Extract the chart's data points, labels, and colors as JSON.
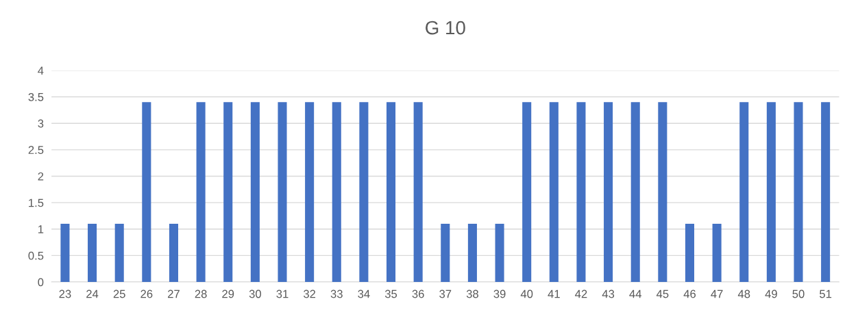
{
  "chart_data": {
    "type": "bar",
    "title": "G 10",
    "categories": [
      "23",
      "24",
      "25",
      "26",
      "27",
      "28",
      "29",
      "30",
      "31",
      "32",
      "33",
      "34",
      "35",
      "36",
      "37",
      "38",
      "39",
      "40",
      "41",
      "42",
      "43",
      "44",
      "45",
      "46",
      "47",
      "48",
      "49",
      "50",
      "51"
    ],
    "values": [
      1.1,
      1.1,
      1.1,
      3.4,
      1.1,
      3.4,
      3.4,
      3.4,
      3.4,
      3.4,
      3.4,
      3.4,
      3.4,
      3.4,
      1.1,
      1.1,
      1.1,
      3.4,
      3.4,
      3.4,
      3.4,
      3.4,
      3.4,
      1.1,
      1.1,
      3.4,
      3.4,
      3.4,
      3.4
    ],
    "color": "#4472c4",
    "ylim": [
      0,
      4
    ],
    "yticks": [
      0,
      0.5,
      1,
      1.5,
      2,
      2.5,
      3,
      3.5,
      4
    ],
    "grid": "y",
    "legend": false
  }
}
